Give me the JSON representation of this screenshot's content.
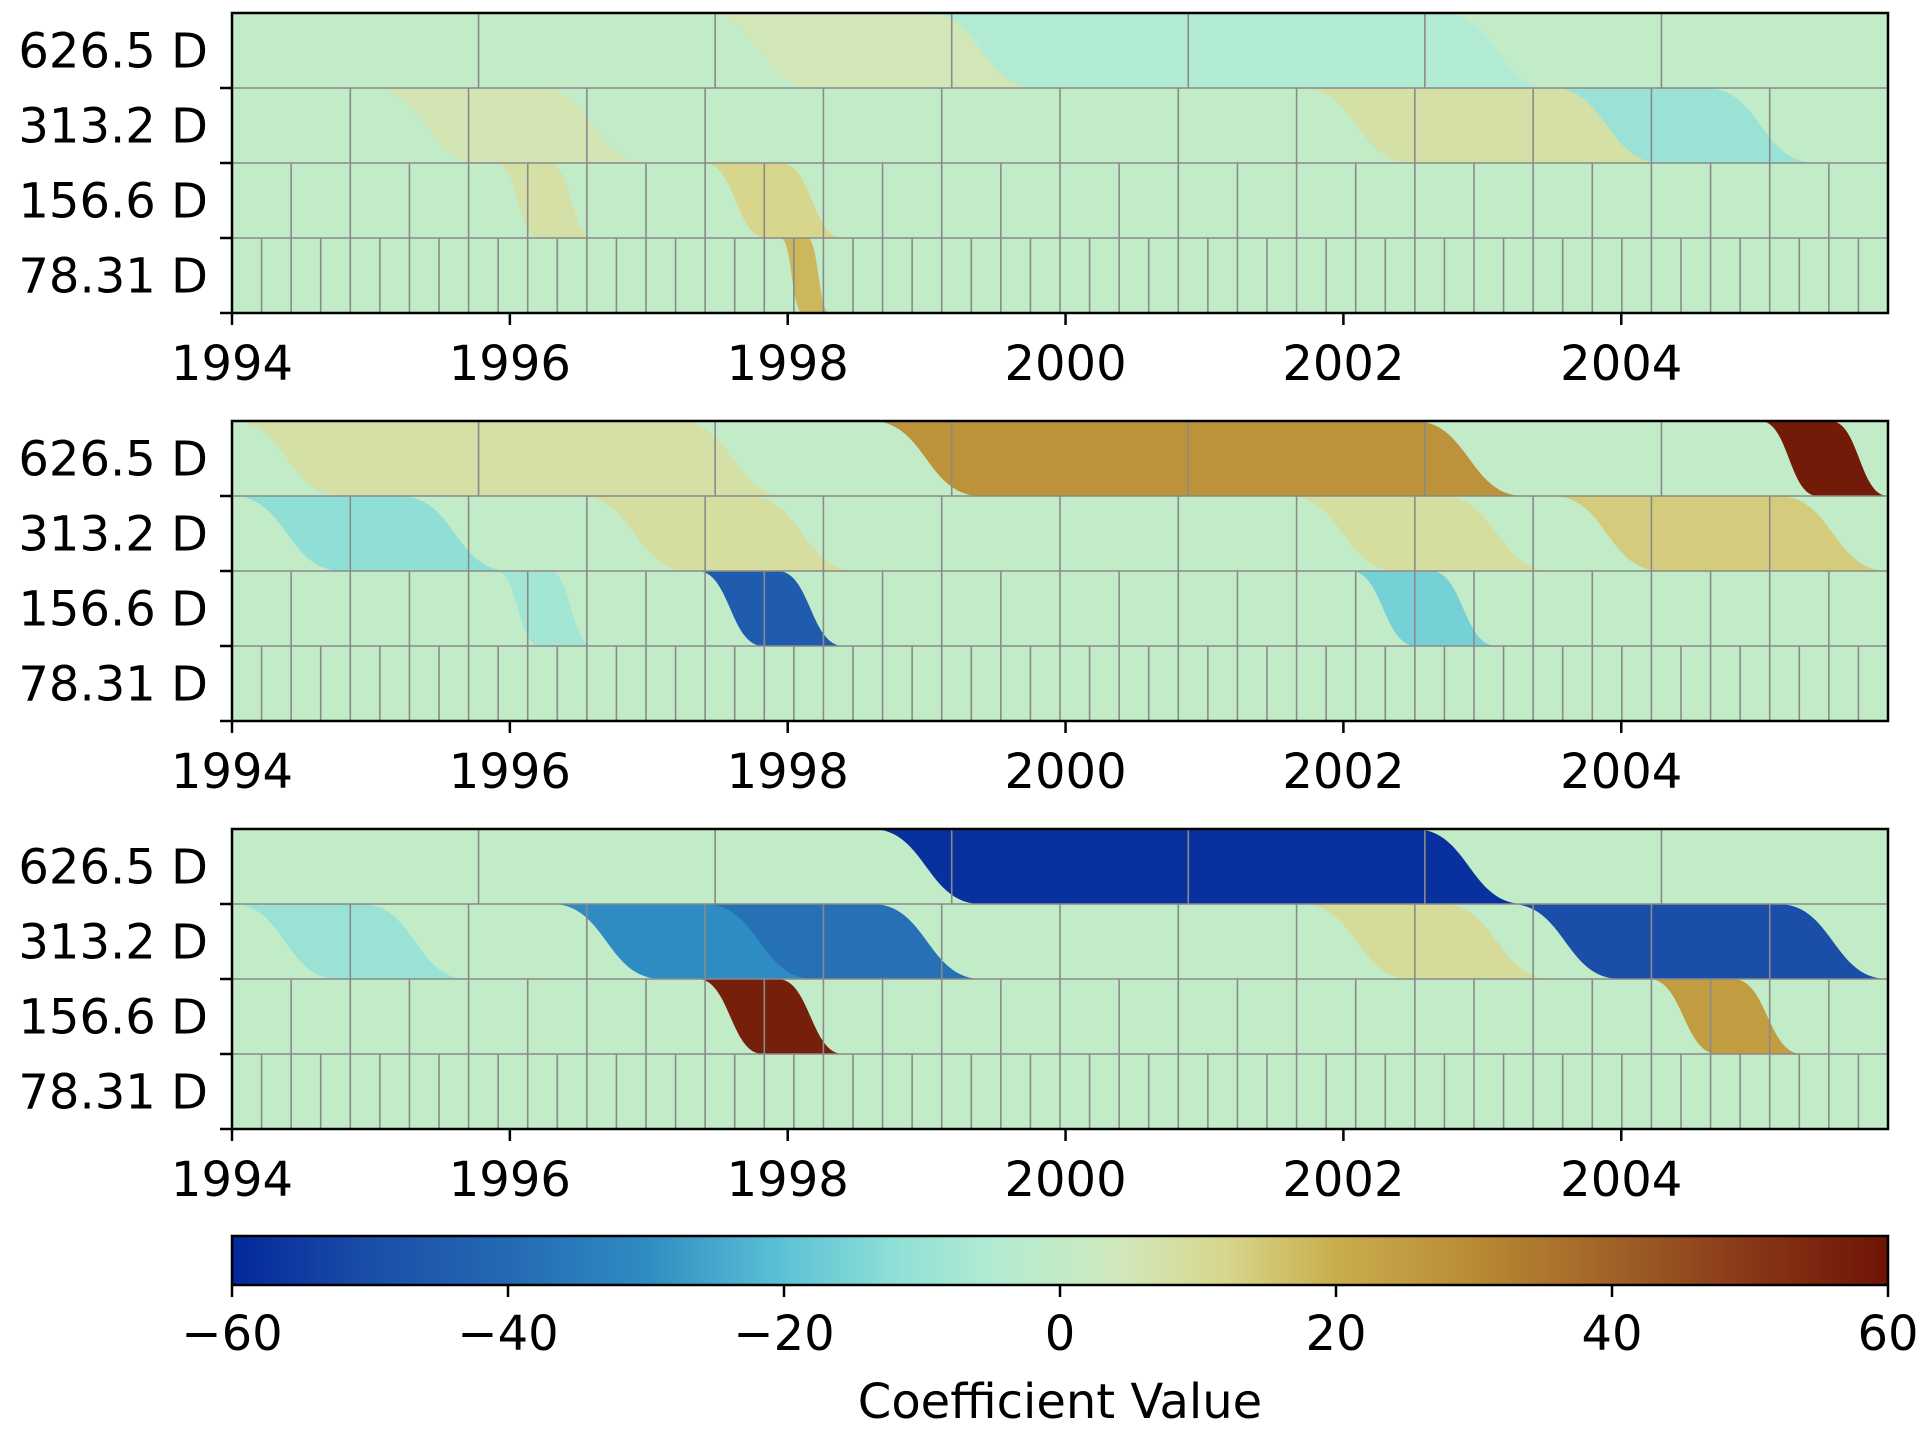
{
  "chart_data": [
    {
      "type": "heatmap",
      "x_range": [
        1994,
        2005.92
      ],
      "x_ticks": [
        "1994",
        "1996",
        "1998",
        "2000",
        "2002",
        "2004"
      ],
      "y_categories": [
        "626.5 D",
        "313.2 D",
        "156.6 D",
        "78.31 D"
      ],
      "grid": true,
      "nonzero_coefficients": [
        {
          "scale": "626.5 D",
          "start": 1997.4,
          "end": 2001.3,
          "value": 5
        },
        {
          "scale": "626.5 D",
          "start": 1999.0,
          "end": 2003.5,
          "value": -5
        },
        {
          "scale": "313.2 D",
          "start": 1995.0,
          "end": 1997.0,
          "value": 6
        },
        {
          "scale": "313.2 D",
          "start": 2001.7,
          "end": 2004.5,
          "value": 8
        },
        {
          "scale": "313.2 D",
          "start": 2003.5,
          "end": 2005.4,
          "value": -10
        },
        {
          "scale": "156.6 D",
          "start": 1995.9,
          "end": 1996.6,
          "value": 8
        },
        {
          "scale": "156.6 D",
          "start": 1997.4,
          "end": 1998.4,
          "value": 12
        },
        {
          "scale": "78.31 D",
          "start": 1997.95,
          "end": 1998.3,
          "value": 18
        }
      ]
    },
    {
      "type": "heatmap",
      "x_range": [
        1994,
        2005.92
      ],
      "x_ticks": [
        "1994",
        "1996",
        "1998",
        "2000",
        "2002",
        "2004"
      ],
      "y_categories": [
        "626.5 D",
        "313.2 D",
        "156.6 D",
        "78.31 D"
      ],
      "grid": true,
      "nonzero_coefficients": [
        {
          "scale": "626.5 D",
          "start": 1994.0,
          "end": 1998.0,
          "value": 8
        },
        {
          "scale": "626.5 D",
          "start": 1998.6,
          "end": 2003.3,
          "value": 28
        },
        {
          "scale": "626.5 D",
          "start": 2005.0,
          "end": 2005.92,
          "value": 58
        },
        {
          "scale": "313.2 D",
          "start": 1994.0,
          "end": 1996.0,
          "value": -12
        },
        {
          "scale": "313.2 D",
          "start": 1996.5,
          "end": 1998.5,
          "value": 9
        },
        {
          "scale": "313.2 D",
          "start": 2001.6,
          "end": 2003.5,
          "value": 9
        },
        {
          "scale": "313.2 D",
          "start": 2003.5,
          "end": 2005.92,
          "value": 14
        },
        {
          "scale": "156.6 D",
          "start": 1995.9,
          "end": 1996.6,
          "value": -8
        },
        {
          "scale": "156.6 D",
          "start": 1997.35,
          "end": 1998.4,
          "value": -45
        },
        {
          "scale": "156.6 D",
          "start": 2002.05,
          "end": 2003.1,
          "value": -16
        }
      ]
    },
    {
      "type": "heatmap",
      "x_range": [
        1994,
        2005.92
      ],
      "x_ticks": [
        "1994",
        "1996",
        "1998",
        "2000",
        "2002",
        "2004"
      ],
      "y_categories": [
        "626.5 D",
        "313.2 D",
        "156.6 D",
        "78.31 D"
      ],
      "grid": true,
      "nonzero_coefficients": [
        {
          "scale": "626.5 D",
          "start": 1998.6,
          "end": 2003.3,
          "value": -58
        },
        {
          "scale": "313.2 D",
          "start": 1994.0,
          "end": 1995.7,
          "value": -10
        },
        {
          "scale": "313.2 D",
          "start": 1996.3,
          "end": 1998.6,
          "value": -30
        },
        {
          "scale": "313.2 D",
          "start": 1997.4,
          "end": 1999.4,
          "value": -38
        },
        {
          "scale": "313.2 D",
          "start": 2001.7,
          "end": 2003.5,
          "value": 10
        },
        {
          "scale": "313.2 D",
          "start": 2003.2,
          "end": 2005.92,
          "value": -50
        },
        {
          "scale": "156.6 D",
          "start": 1997.35,
          "end": 1998.4,
          "value": 57
        },
        {
          "scale": "156.6 D",
          "start": 2004.2,
          "end": 2005.3,
          "value": 25
        }
      ]
    },
    {
      "type": "colorbar",
      "label": "Coefficient Value",
      "range": [
        -60,
        60
      ],
      "ticks": [
        "−60",
        "−40",
        "−20",
        "0",
        "20",
        "40",
        "60"
      ],
      "colormap_stops": [
        {
          "value": -60,
          "color": "#04289b"
        },
        {
          "value": -50,
          "color": "#1a4ea8"
        },
        {
          "value": -40,
          "color": "#2469b3"
        },
        {
          "value": -30,
          "color": "#2f8cc2"
        },
        {
          "value": -20,
          "color": "#5cc2d6"
        },
        {
          "value": -12,
          "color": "#8fdfd6"
        },
        {
          "value": -5,
          "color": "#b2ebd3"
        },
        {
          "value": 0,
          "color": "#c2ebc7"
        },
        {
          "value": 5,
          "color": "#d2e7b8"
        },
        {
          "value": 12,
          "color": "#d7d68c"
        },
        {
          "value": 20,
          "color": "#c9ad4d"
        },
        {
          "value": 30,
          "color": "#b98b35"
        },
        {
          "value": 40,
          "color": "#a06227"
        },
        {
          "value": 50,
          "color": "#883718"
        },
        {
          "value": 60,
          "color": "#6e1405"
        }
      ]
    }
  ]
}
